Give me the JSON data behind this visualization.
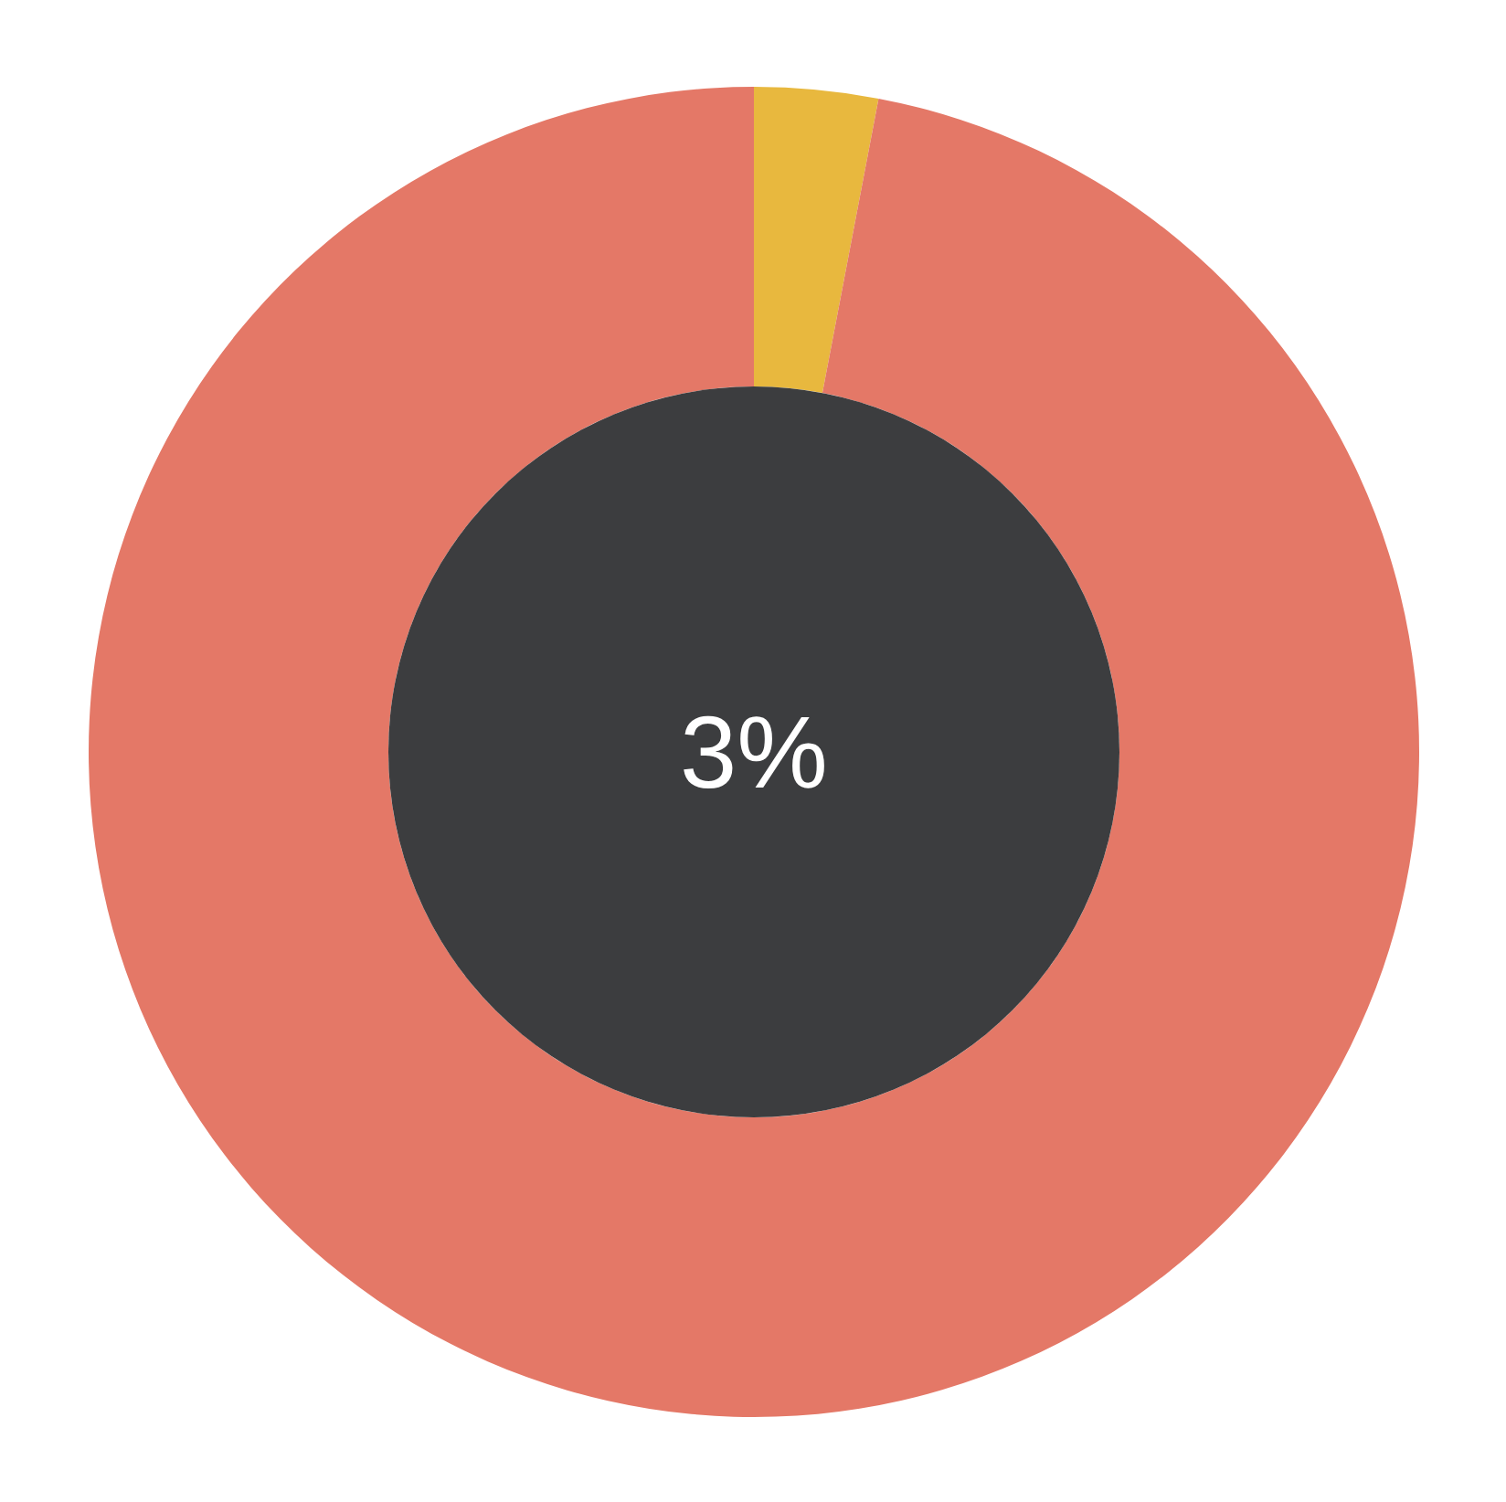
{
  "chart_data": {
    "type": "donut",
    "categories": [
      null,
      null
    ],
    "values": [
      3,
      97
    ],
    "colors": [
      "#e8b83e",
      "#e47867"
    ],
    "annotations": [
      "3%"
    ]
  }
}
